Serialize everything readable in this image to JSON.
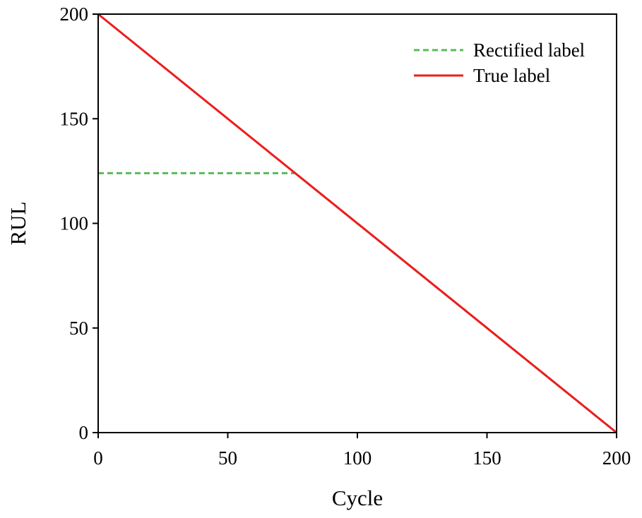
{
  "chart_data": {
    "type": "line",
    "xlabel": "Cycle",
    "ylabel": "RUL",
    "xlim": [
      0,
      200
    ],
    "ylim": [
      0,
      200
    ],
    "x_ticks": [
      0,
      50,
      100,
      150,
      200
    ],
    "y_ticks": [
      0,
      50,
      100,
      150,
      200
    ],
    "x_tick_labels": [
      "0",
      "50",
      "100",
      "150",
      "200"
    ],
    "y_tick_labels": [
      "0",
      "50",
      "100",
      "150",
      "200"
    ],
    "grid": false,
    "legend_position": "top-right",
    "series": [
      {
        "name": "Rectified label",
        "style": "dashed",
        "color": "#5cb85c",
        "points": [
          [
            0,
            124
          ],
          [
            76,
            124
          ],
          [
            200,
            0
          ]
        ]
      },
      {
        "name": "True label",
        "style": "solid",
        "color": "#ee1c1c",
        "points": [
          [
            0,
            200
          ],
          [
            200,
            0
          ]
        ]
      }
    ]
  }
}
